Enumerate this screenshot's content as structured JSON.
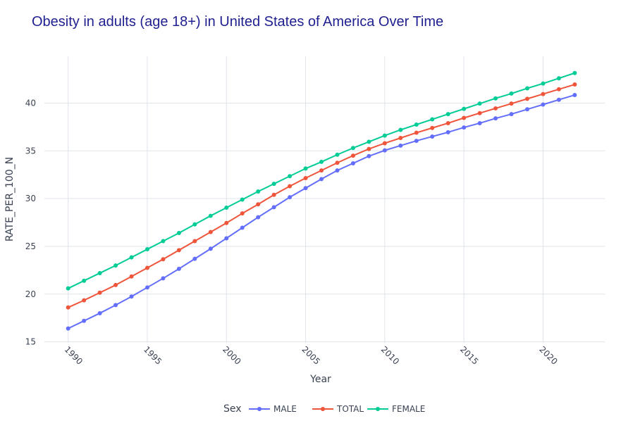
{
  "chart_data": {
    "type": "line",
    "title": "Obesity in adults (age 18+) in United States of America Over Time",
    "xlabel": "Year",
    "ylabel": "RATE_PER_100_N",
    "x": [
      1990,
      1991,
      1992,
      1993,
      1994,
      1995,
      1996,
      1997,
      1998,
      1999,
      2000,
      2001,
      2002,
      2003,
      2004,
      2005,
      2006,
      2007,
      2008,
      2009,
      2010,
      2011,
      2012,
      2013,
      2014,
      2015,
      2016,
      2017,
      2018,
      2019,
      2020,
      2021,
      2022
    ],
    "xlim": [
      1988.5,
      2023.9
    ],
    "ylim": [
      14.9,
      44.9
    ],
    "x_ticks": [
      1990,
      1995,
      2000,
      2005,
      2010,
      2015,
      2020
    ],
    "y_ticks": [
      15,
      20,
      25,
      30,
      35,
      40
    ],
    "grid": true,
    "legend_title": "Sex",
    "legend_position": "bottom-center",
    "series": [
      {
        "name": "MALE",
        "color": "#636efa",
        "values": [
          16.4,
          17.2,
          18.0,
          18.85,
          19.75,
          20.7,
          21.65,
          22.65,
          23.7,
          24.75,
          25.85,
          26.95,
          28.05,
          29.1,
          30.15,
          31.1,
          32.05,
          32.95,
          33.7,
          34.45,
          35.05,
          35.55,
          36.05,
          36.5,
          36.95,
          37.45,
          37.9,
          38.4,
          38.85,
          39.35,
          39.85,
          40.35,
          40.85
        ]
      },
      {
        "name": "TOTAL",
        "color": "#ef553b",
        "values": [
          18.6,
          19.35,
          20.15,
          20.95,
          21.85,
          22.75,
          23.65,
          24.6,
          25.55,
          26.5,
          27.45,
          28.45,
          29.4,
          30.4,
          31.3,
          32.15,
          32.95,
          33.75,
          34.5,
          35.2,
          35.8,
          36.35,
          36.9,
          37.4,
          37.9,
          38.45,
          38.95,
          39.45,
          39.95,
          40.45,
          40.95,
          41.45,
          41.95
        ]
      },
      {
        "name": "FEMALE",
        "color": "#00cc96",
        "values": [
          20.6,
          21.4,
          22.2,
          23.0,
          23.85,
          24.7,
          25.55,
          26.4,
          27.3,
          28.2,
          29.05,
          29.9,
          30.75,
          31.55,
          32.35,
          33.15,
          33.85,
          34.6,
          35.3,
          35.95,
          36.6,
          37.2,
          37.75,
          38.3,
          38.85,
          39.4,
          39.95,
          40.5,
          41.0,
          41.55,
          42.05,
          42.6,
          43.15
        ]
      }
    ]
  }
}
